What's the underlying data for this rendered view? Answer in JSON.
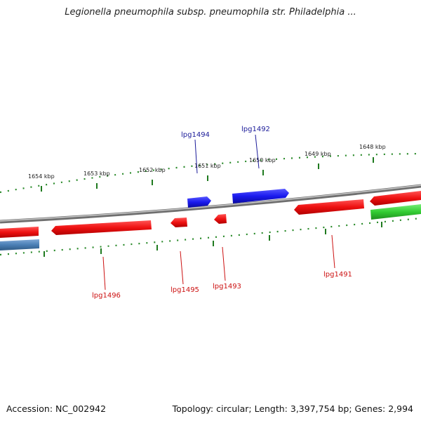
{
  "title": "Legionella pneumophila subsp. pneumophila str. Philadelphia ...",
  "footer": {
    "accession": "Accession: NC_002942",
    "topology": "Topology: circular; Length: 3,397,754 bp; Genes: 2,994"
  },
  "colors": {
    "backbone": "#8a8a8a",
    "tick": "#1f7a1f",
    "forward_gene": "#1a1aee",
    "reverse_gene": "#ee1111",
    "green_gene": "#33cc33",
    "steel_gene": "#4a7fb5",
    "forward_label": "#1a1a99",
    "reverse_label": "#cc1111"
  },
  "ticks": [
    {
      "label": "1654 kbp"
    },
    {
      "label": "1653 kbp"
    },
    {
      "label": "1652 kbp"
    },
    {
      "label": "1651 kbp"
    },
    {
      "label": "1650 kbp"
    },
    {
      "label": "1649 kbp"
    },
    {
      "label": "1648 kbp"
    }
  ],
  "genes": [
    {
      "name": "lpg1494",
      "label": "lpg1494",
      "strand": "forward"
    },
    {
      "name": "lpg1492",
      "label": "lpg1492",
      "strand": "forward"
    },
    {
      "name": "lpg1496",
      "label": "lpg1496",
      "strand": "reverse"
    },
    {
      "name": "lpg1495",
      "label": "lpg1495",
      "strand": "reverse"
    },
    {
      "name": "lpg1493",
      "label": "lpg1493",
      "strand": "reverse"
    },
    {
      "name": "lpg1491",
      "label": "lpg1491",
      "strand": "reverse"
    }
  ]
}
